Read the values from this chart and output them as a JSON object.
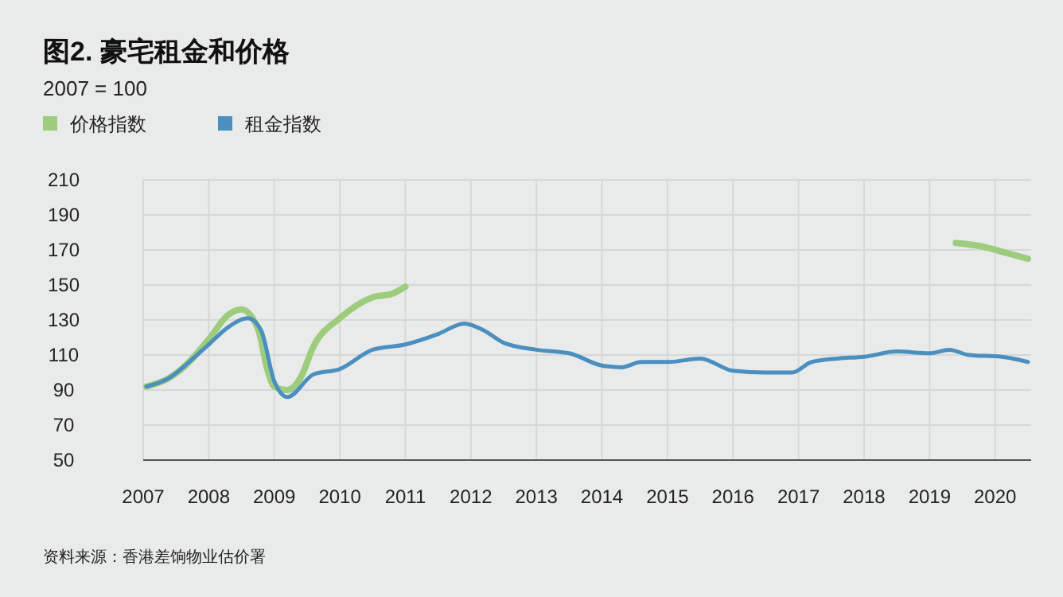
{
  "chart_data": {
    "type": "line",
    "title": "图2. 豪宅租金和价格",
    "subtitle": "2007 = 100",
    "annotations": [
      "资料来源：香港差饷物业估价署"
    ],
    "xlim": [
      2007,
      2020.55
    ],
    "xticks": [
      2007,
      2008,
      2009,
      2010,
      2011,
      2012,
      2013,
      2014,
      2015,
      2016,
      2017,
      2018,
      2019,
      2020
    ],
    "ylim": [
      50,
      210
    ],
    "yticks": [
      50,
      70,
      90,
      110,
      130,
      150,
      170,
      190,
      210
    ],
    "grid": true,
    "legend": "top left",
    "series": [
      {
        "name": "价格指数",
        "color": "#9ccc7c",
        "x": [
          2007.05,
          2007.4,
          2007.7,
          2008.0,
          2008.3,
          2008.5,
          2008.75,
          2008.9,
          2009.0,
          2009.2,
          2009.4,
          2009.6,
          2010.0,
          2010.5,
          2010.8,
          2011.0,
          null,
          2019.4,
          2019.8,
          2020.2,
          2020.5
        ],
        "values": [
          92,
          97,
          106,
          119,
          133,
          136,
          125,
          101,
          92,
          90,
          97,
          115,
          131,
          143,
          145,
          149,
          null,
          174,
          172,
          168,
          165
        ]
      },
      {
        "name": "租金指数",
        "color": "#4a8fc0",
        "x": [
          2007.05,
          2007.4,
          2007.7,
          2008.0,
          2008.3,
          2008.6,
          2008.8,
          2009.0,
          2009.2,
          2009.6,
          2010.0,
          2010.5,
          2011.0,
          2011.5,
          2011.9,
          2012.2,
          2012.5,
          2013.0,
          2013.5,
          2014.0,
          2014.3,
          2014.6,
          2015.0,
          2015.5,
          2016.0,
          2016.5,
          2016.9,
          2017.2,
          2017.6,
          2018.0,
          2018.5,
          2019.0,
          2019.3,
          2019.6,
          2020.1,
          2020.5
        ],
        "values": [
          92,
          97,
          106,
          116,
          126,
          131,
          124,
          95,
          86,
          99,
          102,
          113,
          116,
          122,
          128,
          124,
          117,
          113,
          111,
          104,
          103,
          106,
          106,
          108,
          101,
          100,
          100,
          106,
          108,
          109,
          112,
          111,
          113,
          110,
          109,
          106
        ]
      }
    ]
  }
}
